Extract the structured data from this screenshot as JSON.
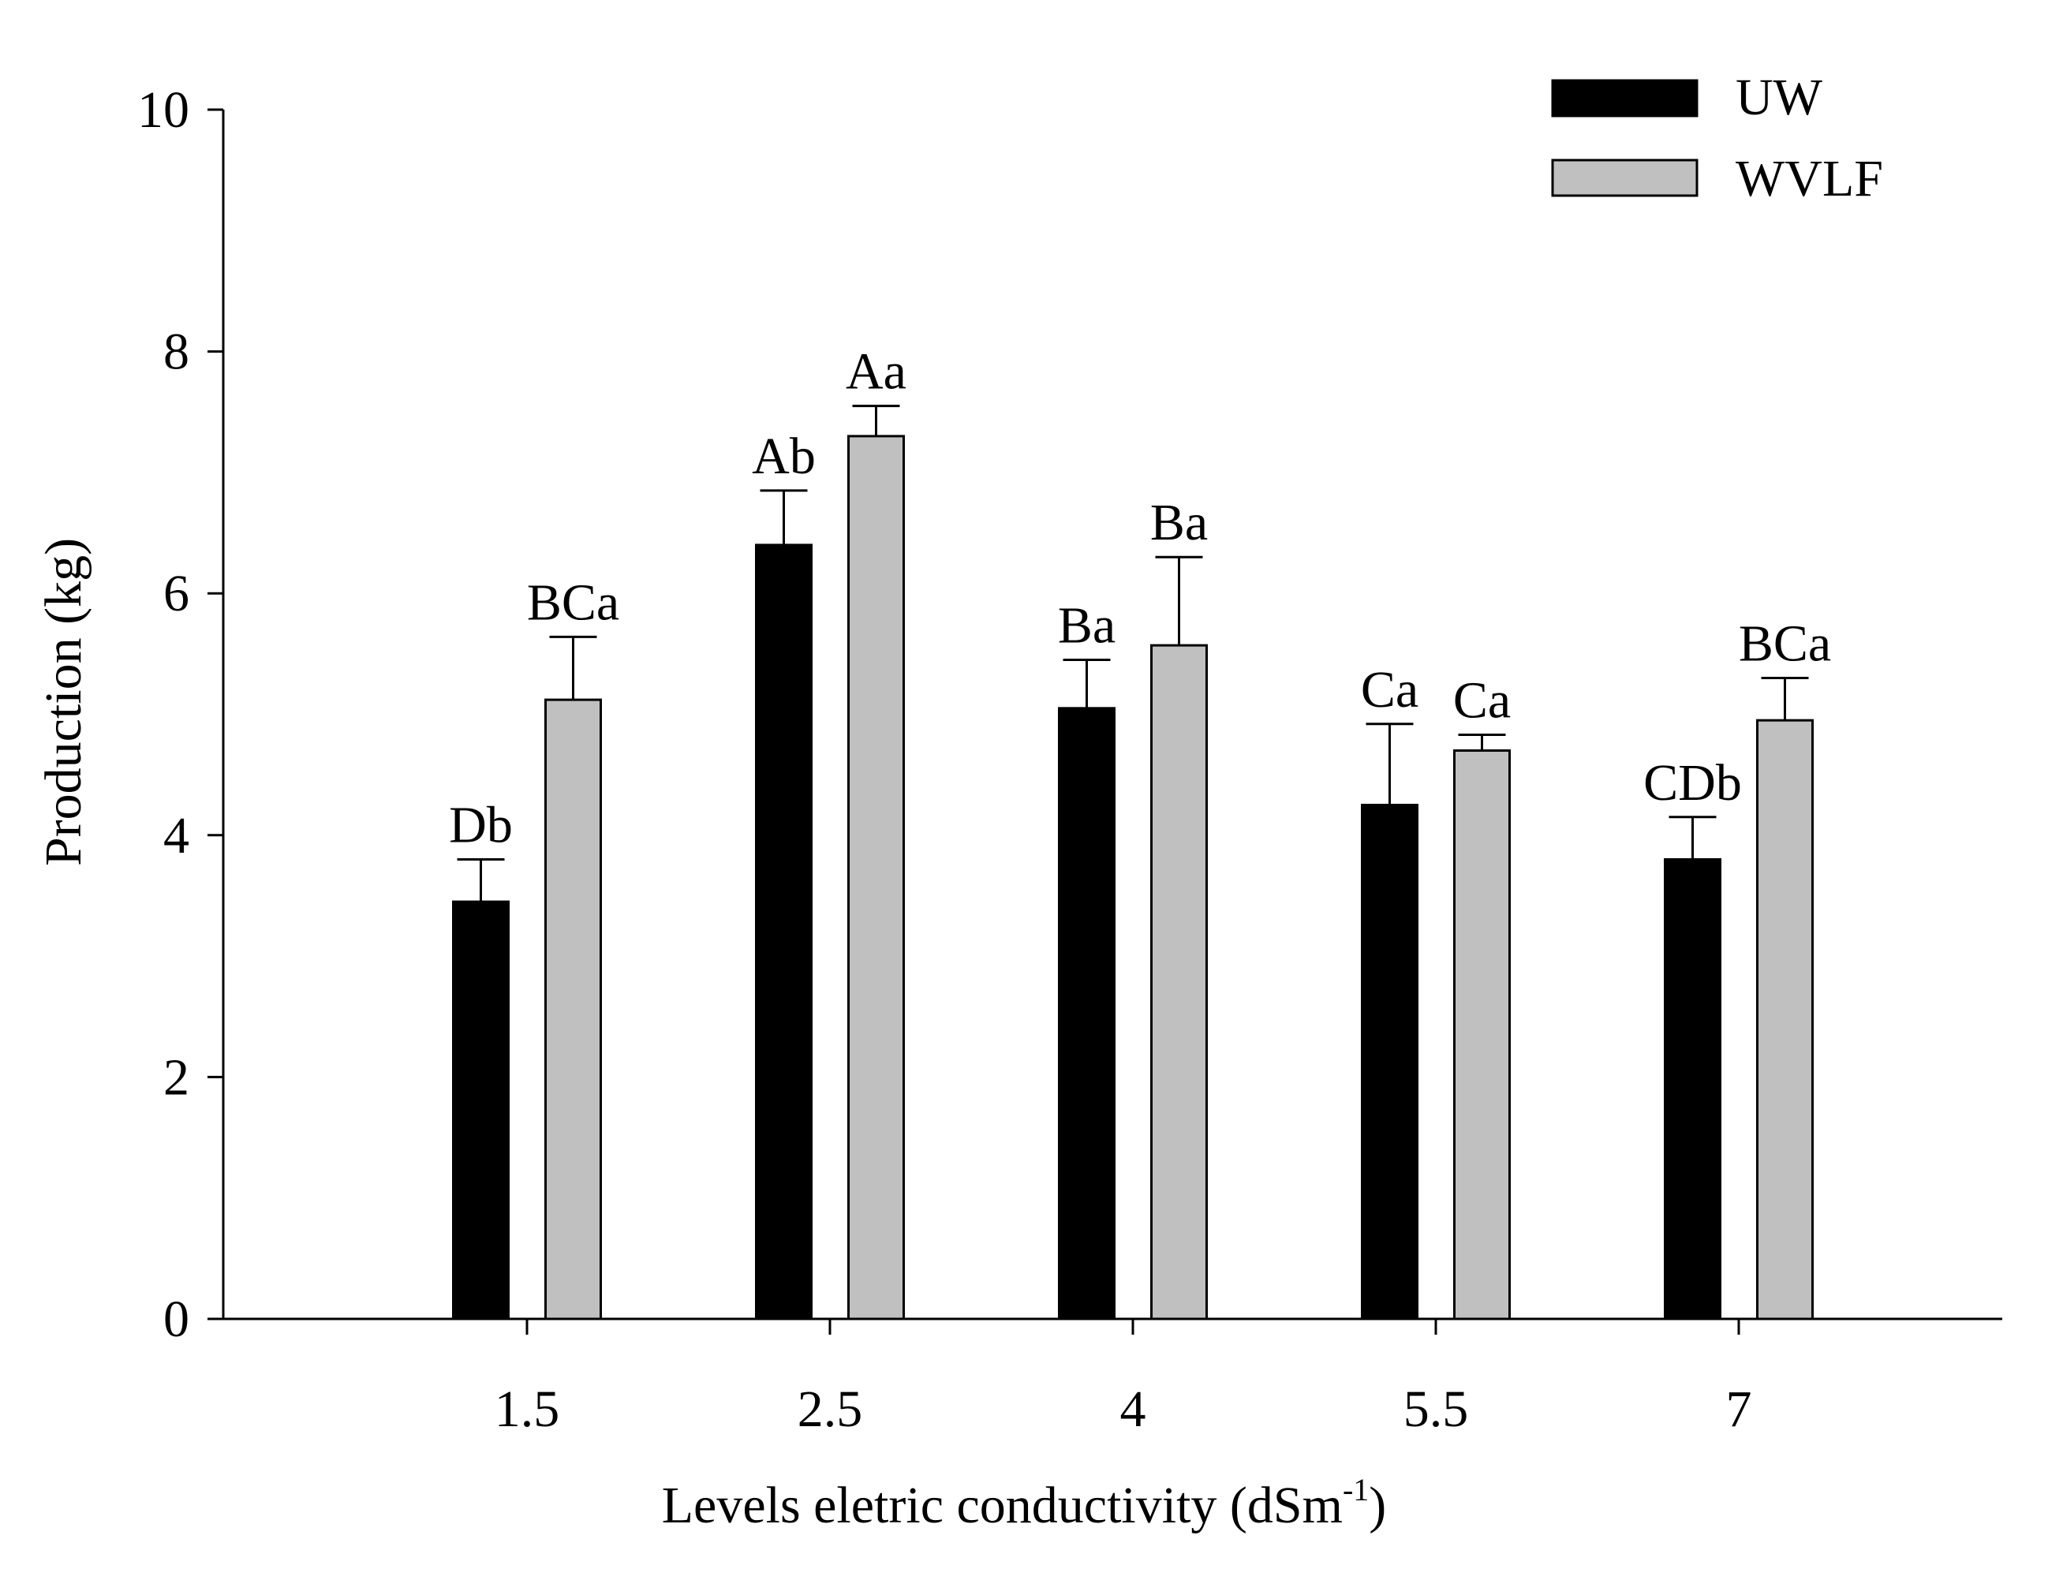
{
  "chart_data": {
    "type": "bar",
    "title": "",
    "xlabel": "Levels eletric conductivity (dSm",
    "xlabel_superscript": "-1",
    "xlabel_suffix": ")",
    "ylabel": "Production (kg)",
    "ylim": [
      0,
      10
    ],
    "yticks": [
      "0",
      "2",
      "4",
      "6",
      "8",
      "10"
    ],
    "categories": [
      "1.5",
      "2.5",
      "4",
      "5.5",
      "7"
    ],
    "legend_position": "top-right",
    "series": [
      {
        "name": "UW",
        "color": "#000000",
        "values": [
          3.45,
          6.4,
          5.05,
          4.25,
          3.8
        ],
        "errors": [
          0.35,
          0.45,
          0.4,
          0.67,
          0.35
        ],
        "labels": [
          "Db",
          "Ab",
          "Ba",
          "Ca",
          "CDb"
        ]
      },
      {
        "name": "WVLF",
        "color": "#c0c0c0",
        "values": [
          5.12,
          7.3,
          5.57,
          4.7,
          4.95
        ],
        "errors": [
          0.52,
          0.25,
          0.73,
          0.13,
          0.35
        ],
        "labels": [
          "BCa",
          "Aa",
          "Ba",
          "Ca",
          "BCa"
        ]
      }
    ]
  }
}
